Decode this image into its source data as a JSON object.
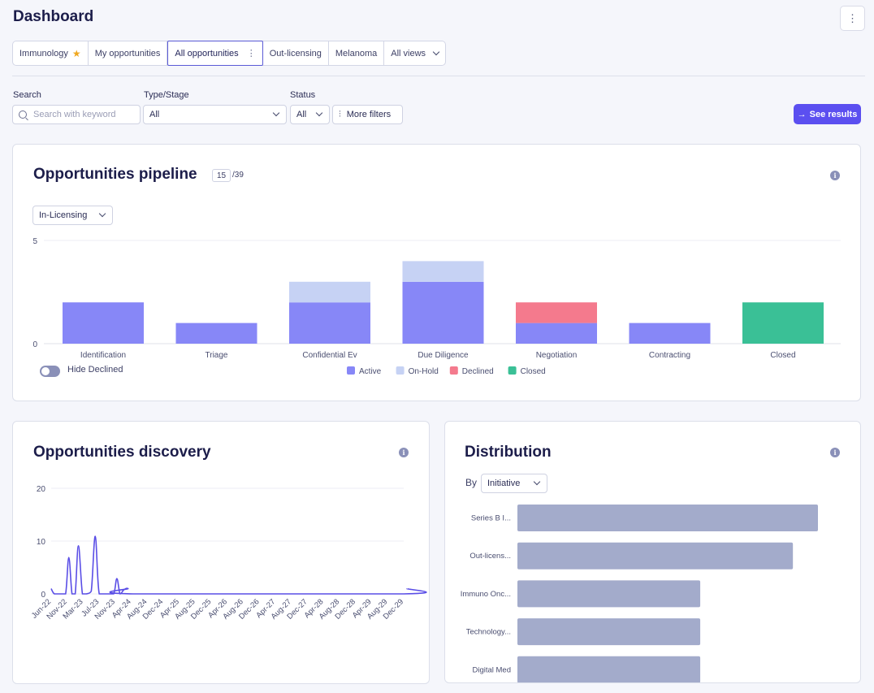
{
  "header": {
    "title": "Dashboard",
    "menu_icon": "kebab-icon"
  },
  "tabs": [
    {
      "label": "Immunology",
      "starred": true
    },
    {
      "label": "My opportunities"
    },
    {
      "label": "All opportunities",
      "active": true,
      "has_menu": true
    },
    {
      "label": "Out-licensing"
    },
    {
      "label": "Melanoma"
    },
    {
      "label": "All views",
      "dropdown": true
    }
  ],
  "filters": {
    "search": {
      "label": "Search",
      "placeholder": "Search with keyword",
      "value": ""
    },
    "type_stage": {
      "label": "Type/Stage",
      "value": "All"
    },
    "status": {
      "label": "Status",
      "value": "All"
    },
    "more_filters": "More filters",
    "see_results": "See results"
  },
  "pipeline": {
    "title": "Opportunities pipeline",
    "count": "15",
    "total": "/39",
    "dropdown": "In-Licensing",
    "toggle_label": "Hide Declined",
    "toggle_on": false
  },
  "discovery": {
    "title": "Opportunities discovery"
  },
  "distribution": {
    "title": "Distribution",
    "by_label": "By",
    "by_value": "Initiative"
  },
  "colors": {
    "active": "#8787f7",
    "on_hold": "#c6d2f4",
    "declined": "#f47a8d",
    "closed": "#3ac096",
    "line": "#5a4ee6",
    "dist_bar": "#a3abcb",
    "accent": "#5b4ff0"
  },
  "chart_data": [
    {
      "type": "bar",
      "stacked": true,
      "categories": [
        "Identification",
        "Triage",
        "Confidential Ev",
        "Due Diligence",
        "Negotiation",
        "Contracting",
        "Closed"
      ],
      "series": [
        {
          "name": "Active",
          "values": [
            2,
            1,
            2,
            3,
            1,
            1,
            0
          ]
        },
        {
          "name": "On-Hold",
          "values": [
            0,
            0,
            1,
            1,
            0,
            0,
            0
          ]
        },
        {
          "name": "Declined",
          "values": [
            0,
            0,
            0,
            0,
            1,
            0,
            0
          ]
        },
        {
          "name": "Closed",
          "values": [
            0,
            0,
            0,
            0,
            0,
            0,
            2
          ]
        }
      ],
      "y_ticks": [
        "0",
        "5"
      ],
      "ylim": [
        0,
        5
      ],
      "grid": true,
      "legend": "bottom-center"
    },
    {
      "type": "line",
      "x_labels": [
        "Jun-22",
        "Nov-22",
        "Mar-23",
        "Jul-23",
        "Nov-23",
        "Apr-24",
        "Aug-24",
        "Dec-24",
        "Apr-25",
        "Aug-25",
        "Dec-25",
        "Apr-26",
        "Aug-26",
        "Dec-26",
        "Apr-27",
        "Aug-27",
        "Dec-27",
        "Apr-28",
        "Aug-28",
        "Dec-28",
        "Apr-29",
        "Aug-29",
        "Dec-29"
      ],
      "points": [
        [
          0,
          1
        ],
        [
          0.2,
          0
        ],
        [
          0.6,
          0
        ],
        [
          0.9,
          0
        ],
        [
          1.1,
          6.9
        ],
        [
          1.3,
          0
        ],
        [
          1.5,
          0
        ],
        [
          1.7,
          9.1
        ],
        [
          1.95,
          0
        ],
        [
          2.2,
          0
        ],
        [
          2.5,
          0.5
        ],
        [
          2.75,
          10.9
        ],
        [
          3.0,
          0
        ],
        [
          3.5,
          0
        ],
        [
          3.9,
          0
        ],
        [
          4.1,
          2.9
        ],
        [
          4.3,
          0
        ],
        [
          4.55,
          0.8
        ],
        [
          4.8,
          1
        ],
        [
          5.1,
          0
        ],
        [
          22,
          0
        ],
        [
          22.2,
          1
        ]
      ],
      "y_ticks": [
        "0",
        "10",
        "20"
      ],
      "ylim": [
        0,
        20
      ],
      "grid": true
    },
    {
      "type": "bar",
      "orientation": "horizontal",
      "categories": [
        "Series B I...",
        "Out-licens...",
        "Immuno Onc...",
        "Technology...",
        "Digital Med"
      ],
      "values": [
        12,
        11,
        7.3,
        7.3,
        7.3
      ]
    }
  ]
}
